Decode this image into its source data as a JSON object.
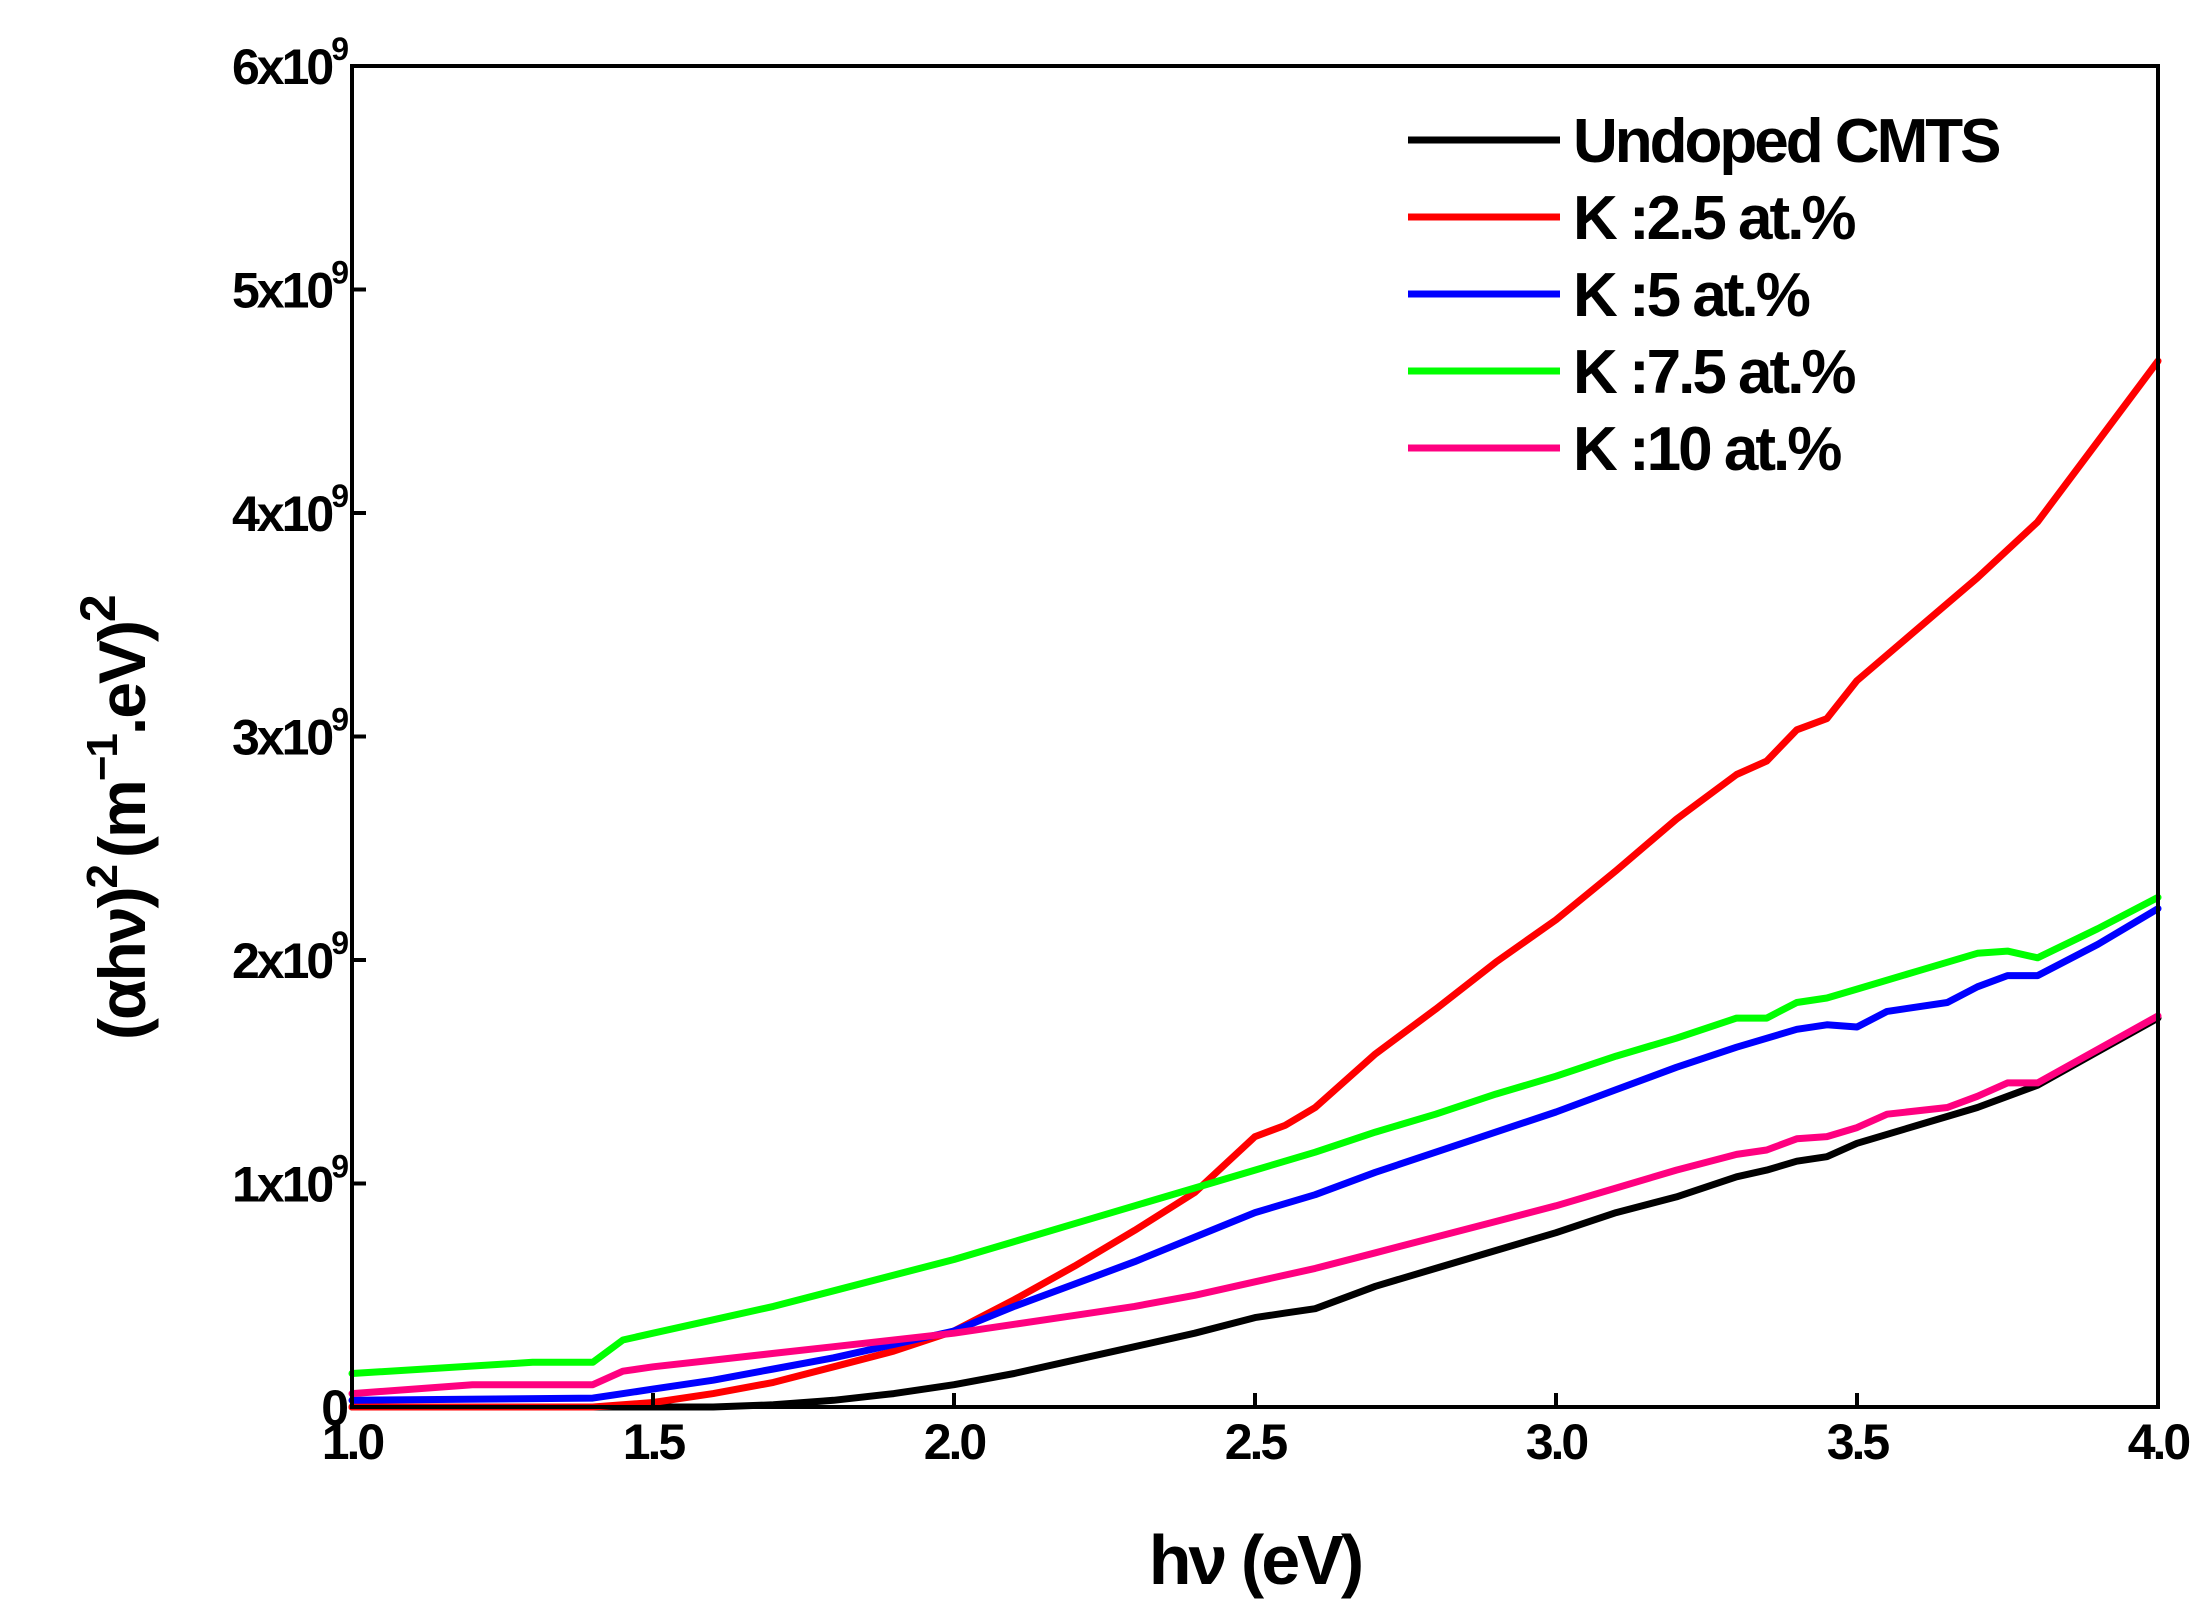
{
  "chart_data": {
    "type": "line",
    "xlabel": "hν (eV)",
    "ylabel": {
      "base": "(αhν)",
      "sup1": "2",
      "units": "(m",
      "units_sup": "−1",
      "units_tail": ".eV)",
      "sup2": "2"
    },
    "xlim": [
      1.0,
      4.0
    ],
    "ylim": [
      0,
      6000000000
    ],
    "x_ticks": [
      "1.0",
      "1.5",
      "2.0",
      "2.5",
      "3.0",
      "3.5",
      "4.0"
    ],
    "y_ticks": [
      {
        "mantissa": "0",
        "exp": ""
      },
      {
        "mantissa": "1x10",
        "exp": "9"
      },
      {
        "mantissa": "2x10",
        "exp": "9"
      },
      {
        "mantissa": "3x10",
        "exp": "9"
      },
      {
        "mantissa": "4x10",
        "exp": "9"
      },
      {
        "mantissa": "5x10",
        "exp": "9"
      },
      {
        "mantissa": "6x10",
        "exp": "9"
      }
    ],
    "legend_position": "top-right",
    "series": [
      {
        "name": "Undoped CMTS",
        "color": "#000000",
        "x": [
          1.0,
          1.4,
          1.5,
          1.6,
          1.7,
          1.8,
          1.9,
          2.0,
          2.1,
          2.2,
          2.3,
          2.4,
          2.5,
          2.55,
          2.6,
          2.7,
          2.8,
          2.9,
          3.0,
          3.1,
          3.2,
          3.3,
          3.35,
          3.4,
          3.45,
          3.5,
          3.6,
          3.7,
          3.8,
          3.9,
          4.0
        ],
        "y": [
          0,
          0,
          0,
          0,
          10000000,
          30000000,
          60000000,
          100000000,
          150000000,
          210000000,
          270000000,
          330000000,
          400000000,
          420000000,
          440000000,
          540000000,
          620000000,
          700000000,
          780000000,
          870000000,
          940000000,
          1030000000,
          1060000000,
          1100000000,
          1120000000,
          1180000000,
          1260000000,
          1340000000,
          1440000000,
          1590000000,
          1740000000
        ]
      },
      {
        "name": "K :2.5 at.%",
        "color": "#ff0000",
        "x": [
          1.0,
          1.4,
          1.5,
          1.6,
          1.7,
          1.8,
          1.9,
          2.0,
          2.1,
          2.2,
          2.3,
          2.4,
          2.5,
          2.55,
          2.6,
          2.7,
          2.8,
          2.9,
          3.0,
          3.1,
          3.2,
          3.3,
          3.35,
          3.4,
          3.45,
          3.5,
          3.6,
          3.7,
          3.8,
          3.9,
          4.0
        ],
        "y": [
          0,
          0,
          20000000,
          60000000,
          110000000,
          180000000,
          250000000,
          340000000,
          480000000,
          630000000,
          790000000,
          960000000,
          1210000000,
          1260000000,
          1340000000,
          1580000000,
          1780000000,
          1990000000,
          2180000000,
          2400000000,
          2630000000,
          2830000000,
          2890000000,
          3030000000,
          3080000000,
          3250000000,
          3480000000,
          3710000000,
          3960000000,
          4320000000,
          4680000000
        ]
      },
      {
        "name": "K :5 at.%",
        "color": "#0000ff",
        "x": [
          1.0,
          1.4,
          1.5,
          1.6,
          1.7,
          1.8,
          1.9,
          2.0,
          2.1,
          2.2,
          2.3,
          2.4,
          2.5,
          2.6,
          2.7,
          2.8,
          2.9,
          3.0,
          3.1,
          3.2,
          3.3,
          3.4,
          3.45,
          3.5,
          3.55,
          3.65,
          3.7,
          3.75,
          3.8,
          3.9,
          4.0
        ],
        "y": [
          30000000,
          40000000,
          80000000,
          120000000,
          170000000,
          220000000,
          280000000,
          340000000,
          450000000,
          550000000,
          650000000,
          760000000,
          870000000,
          950000000,
          1050000000,
          1140000000,
          1230000000,
          1320000000,
          1420000000,
          1520000000,
          1610000000,
          1690000000,
          1710000000,
          1700000000,
          1770000000,
          1810000000,
          1880000000,
          1930000000,
          1930000000,
          2070000000,
          2230000000
        ]
      },
      {
        "name": "K :7.5 at.%",
        "color": "#00ff00",
        "x": [
          1.0,
          1.3,
          1.4,
          1.45,
          1.5,
          1.6,
          1.7,
          1.8,
          1.9,
          2.0,
          2.1,
          2.2,
          2.3,
          2.4,
          2.5,
          2.6,
          2.7,
          2.8,
          2.9,
          3.0,
          3.1,
          3.2,
          3.3,
          3.35,
          3.4,
          3.45,
          3.5,
          3.6,
          3.7,
          3.75,
          3.8,
          3.9,
          4.0
        ],
        "y": [
          150000000,
          200000000,
          200000000,
          300000000,
          330000000,
          390000000,
          450000000,
          520000000,
          590000000,
          660000000,
          740000000,
          820000000,
          900000000,
          980000000,
          1060000000,
          1140000000,
          1230000000,
          1310000000,
          1400000000,
          1480000000,
          1570000000,
          1650000000,
          1740000000,
          1740000000,
          1810000000,
          1830000000,
          1870000000,
          1950000000,
          2030000000,
          2040000000,
          2010000000,
          2140000000,
          2280000000
        ]
      },
      {
        "name": "K :10 at.%",
        "color": "#ff0080",
        "x": [
          1.0,
          1.2,
          1.3,
          1.4,
          1.45,
          1.5,
          1.6,
          1.7,
          1.8,
          1.9,
          2.0,
          2.1,
          2.2,
          2.3,
          2.4,
          2.5,
          2.6,
          2.7,
          2.8,
          2.9,
          3.0,
          3.1,
          3.2,
          3.3,
          3.35,
          3.4,
          3.45,
          3.5,
          3.55,
          3.65,
          3.7,
          3.75,
          3.8,
          3.9,
          4.0
        ],
        "y": [
          60000000,
          100000000,
          100000000,
          100000000,
          160000000,
          180000000,
          210000000,
          240000000,
          270000000,
          300000000,
          330000000,
          370000000,
          410000000,
          450000000,
          500000000,
          560000000,
          620000000,
          690000000,
          760000000,
          830000000,
          900000000,
          980000000,
          1060000000,
          1130000000,
          1150000000,
          1200000000,
          1210000000,
          1250000000,
          1310000000,
          1340000000,
          1390000000,
          1450000000,
          1450000000,
          1600000000,
          1750000000
        ]
      }
    ]
  }
}
